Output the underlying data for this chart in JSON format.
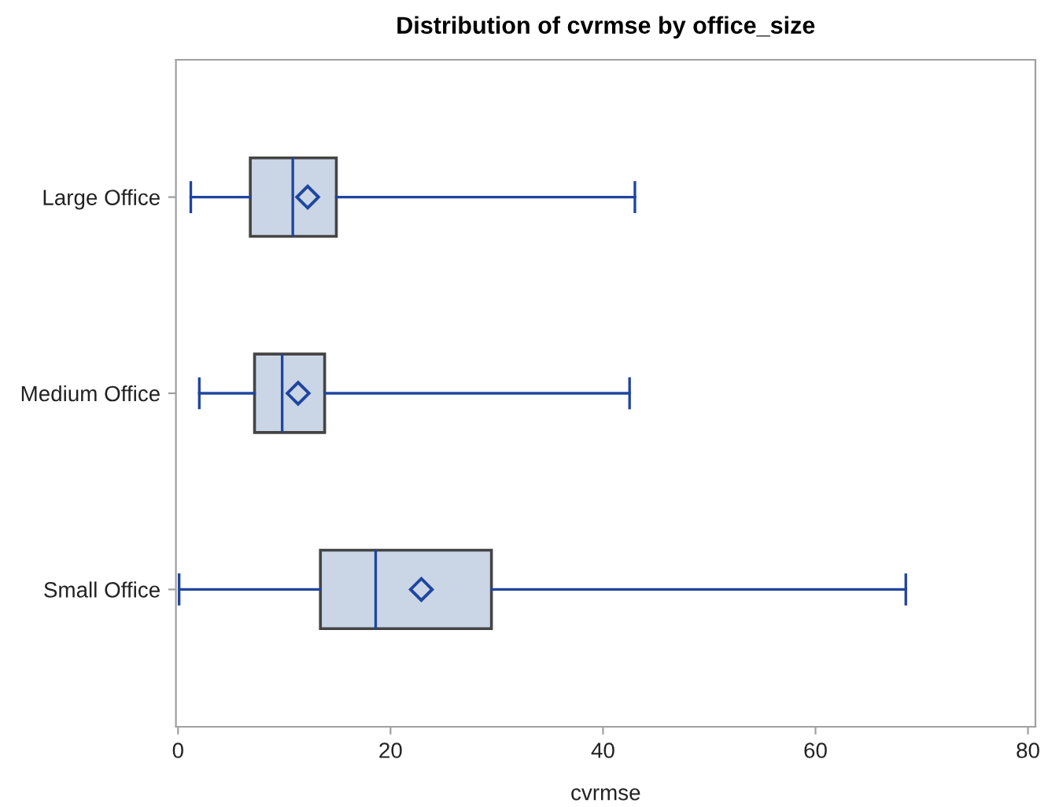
{
  "chart_data": {
    "type": "box",
    "orientation": "horizontal",
    "title": "Distribution of cvrmse by office_size",
    "xlabel": "cvrmse",
    "categories": [
      "Large Office",
      "Medium Office",
      "Small Office"
    ],
    "boxes": [
      {
        "low": 1.2,
        "q1": 6.8,
        "median": 10.8,
        "q3": 14.9,
        "high": 43.0,
        "mean": 12.2
      },
      {
        "low": 2.0,
        "q1": 7.2,
        "median": 9.8,
        "q3": 13.8,
        "high": 42.5,
        "mean": 11.3
      },
      {
        "low": 0.1,
        "q1": 13.4,
        "median": 18.6,
        "q3": 29.5,
        "high": 68.5,
        "mean": 22.9
      }
    ],
    "color": "#cad5e6",
    "marker": "diamond",
    "xlim": [
      -0.2,
      80.7
    ],
    "xticks": [
      0,
      20,
      40,
      60,
      80
    ],
    "grid": false
  }
}
